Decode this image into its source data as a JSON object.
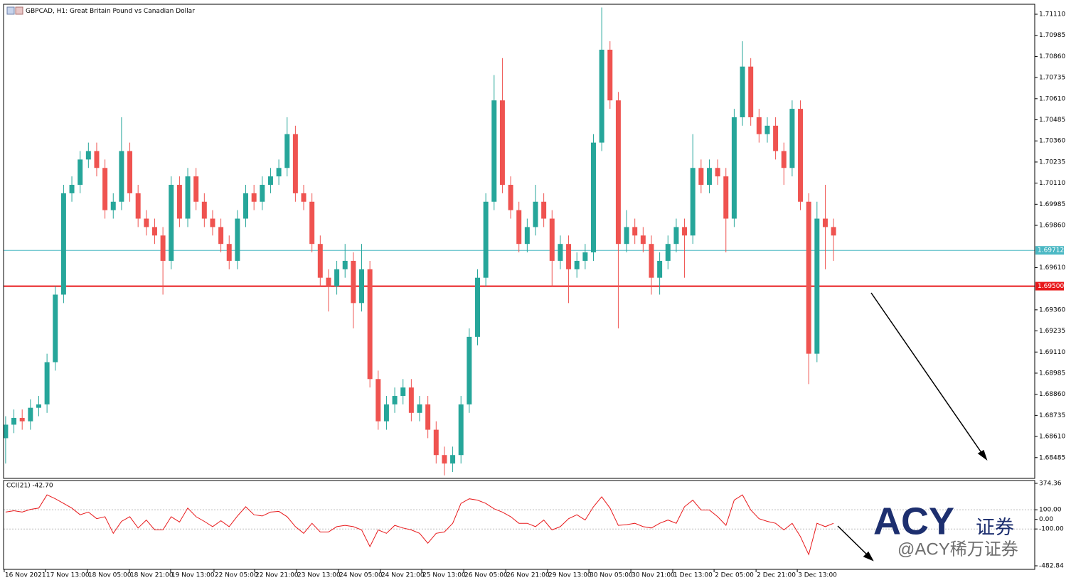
{
  "chart_data": {
    "type": "candlestick",
    "title": "GBPCAD, H1:  Great Britain Pound vs Canadian Dollar",
    "up_color": "#26a69a",
    "down_color": "#ef5350",
    "xlim": [
      -0.25,
      124.3
    ],
    "xticks": [
      {
        "value": -0.17,
        "label": "16 Nov 2021"
      },
      {
        "value": 4.81,
        "label": "17 Nov 13:00"
      },
      {
        "value": 9.88,
        "label": "18 Nov 05:00"
      },
      {
        "value": 14.95,
        "label": "18 Nov 21:00"
      },
      {
        "value": 19.93,
        "label": "19 Nov 13:00"
      },
      {
        "value": 25.17,
        "label": "22 Nov 05:00"
      },
      {
        "value": 30.07,
        "label": "22 Nov 21:00"
      },
      {
        "value": 35.14,
        "label": "23 Nov 13:00"
      },
      {
        "value": 40.21,
        "label": "24 Nov 05:00"
      },
      {
        "value": 45.27,
        "label": "24 Nov 21:00"
      },
      {
        "value": 50.26,
        "label": "25 Nov 13:00"
      },
      {
        "value": 55.33,
        "label": "26 Nov 05:00"
      },
      {
        "value": 60.4,
        "label": "26 Nov 21:00"
      },
      {
        "value": 65.46,
        "label": "29 Nov 13:00"
      },
      {
        "value": 70.45,
        "label": "30 Nov 05:00"
      },
      {
        "value": 75.52,
        "label": "30 Nov 21:00"
      },
      {
        "value": 80.58,
        "label": "1 Dec 13:00"
      },
      {
        "value": 85.57,
        "label": "2 Dec 05:00"
      },
      {
        "value": 90.64,
        "label": "2 Dec 21:00"
      },
      {
        "value": 95.62,
        "label": "3 Dec 13:00"
      }
    ],
    "ylim": [
      1.68362,
      1.71169
    ],
    "yticks": [
      {
        "value": 1.7111,
        "label": "1.71110"
      },
      {
        "value": 1.70985,
        "label": "1.70985"
      },
      {
        "value": 1.7086,
        "label": "1.70860"
      },
      {
        "value": 1.70735,
        "label": "1.70735"
      },
      {
        "value": 1.7061,
        "label": "1.70610"
      },
      {
        "value": 1.70485,
        "label": "1.70485"
      },
      {
        "value": 1.7036,
        "label": "1.70360"
      },
      {
        "value": 1.70235,
        "label": "1.70235"
      },
      {
        "value": 1.7011,
        "label": "1.70110"
      },
      {
        "value": 1.69985,
        "label": "1.69985"
      },
      {
        "value": 1.6986,
        "label": "1.69860"
      },
      {
        "value": 1.6961,
        "label": "1.69610"
      },
      {
        "value": 1.6936,
        "label": "1.69360"
      },
      {
        "value": 1.69235,
        "label": "1.69235"
      },
      {
        "value": 1.6911,
        "label": "1.69110"
      },
      {
        "value": 1.68985,
        "label": "1.68985"
      },
      {
        "value": 1.6886,
        "label": "1.68860"
      },
      {
        "value": 1.68735,
        "label": "1.68735"
      },
      {
        "value": 1.6861,
        "label": "1.68610"
      },
      {
        "value": 1.68485,
        "label": "1.68485"
      }
    ],
    "hlines": [
      {
        "value": 1.69712,
        "label": "1.69712",
        "color": "#4bb8c4"
      },
      {
        "value": 1.695,
        "label": "1.69500",
        "color": "#e8191b"
      }
    ],
    "open": [
      1.686,
      1.6868,
      1.6872,
      1.687,
      1.6878,
      1.688,
      1.6905,
      1.6945,
      1.7005,
      1.701,
      1.7025,
      1.703,
      1.702,
      1.6995,
      1.7,
      1.703,
      1.7005,
      1.699,
      1.6985,
      1.698,
      1.6965,
      1.701,
      1.699,
      1.7015,
      1.7,
      1.699,
      1.6985,
      1.6975,
      1.6965,
      1.699,
      1.7005,
      1.7,
      1.701,
      1.7015,
      1.702,
      1.704,
      1.7005,
      1.7,
      1.6975,
      1.6955,
      1.695,
      1.696,
      1.6965,
      1.694,
      1.696,
      1.6895,
      1.687,
      1.688,
      1.6885,
      1.689,
      1.6875,
      1.688,
      1.6865,
      1.685,
      1.6845,
      1.685,
      1.688,
      1.692,
      1.6955,
      1.7,
      1.706,
      1.701,
      1.6995,
      1.6975,
      1.6985,
      1.7,
      1.699,
      1.6965,
      1.6975,
      1.696,
      1.6965,
      1.697,
      1.7035,
      1.709,
      1.706,
      1.6975,
      1.6985,
      1.698,
      1.6975,
      1.6955,
      1.6965,
      1.6975,
      1.6985,
      1.698,
      1.702,
      1.701,
      1.702,
      1.7015,
      1.699,
      1.705,
      1.708,
      1.705,
      1.704,
      1.7045,
      1.703,
      1.702,
      1.7055,
      1.7,
      1.691,
      1.699,
      1.6985
    ],
    "high": [
      1.6873,
      1.6877,
      1.6877,
      1.6883,
      1.6885,
      1.691,
      1.695,
      1.701,
      1.7015,
      1.703,
      1.7035,
      1.7035,
      1.7025,
      1.7005,
      1.705,
      1.7035,
      1.701,
      1.6995,
      1.699,
      1.6985,
      1.7015,
      1.7015,
      1.702,
      1.702,
      1.7005,
      1.6995,
      1.699,
      1.698,
      1.6995,
      1.701,
      1.701,
      1.7015,
      1.702,
      1.7025,
      1.705,
      1.7045,
      1.701,
      1.7005,
      1.698,
      1.696,
      1.6965,
      1.6975,
      1.697,
      1.6975,
      1.6965,
      1.69,
      1.6885,
      1.689,
      1.6895,
      1.6895,
      1.6885,
      1.6885,
      1.687,
      1.6855,
      1.6855,
      1.6885,
      1.6925,
      1.696,
      1.7005,
      1.7075,
      1.7085,
      1.7015,
      1.7,
      1.699,
      1.701,
      1.7005,
      1.6995,
      1.698,
      1.698,
      1.697,
      1.6975,
      1.704,
      1.7115,
      1.7095,
      1.7065,
      1.6995,
      1.699,
      1.6985,
      1.698,
      1.697,
      1.698,
      1.699,
      1.699,
      1.704,
      1.7025,
      1.7025,
      1.7025,
      1.702,
      1.7055,
      1.7095,
      1.7085,
      1.7055,
      1.705,
      1.705,
      1.7035,
      1.706,
      1.706,
      1.7005,
      1.7,
      1.701,
      1.699
    ],
    "low": [
      1.6845,
      1.6863,
      1.6865,
      1.6865,
      1.6873,
      1.6875,
      1.69,
      1.694,
      1.7,
      1.7005,
      1.702,
      1.7015,
      1.699,
      1.699,
      1.6995,
      1.7,
      1.6985,
      1.698,
      1.6975,
      1.6945,
      1.696,
      1.6985,
      1.6985,
      1.6995,
      1.6985,
      1.698,
      1.697,
      1.696,
      1.696,
      1.6985,
      1.6995,
      1.6995,
      1.7005,
      1.701,
      1.7015,
      1.7,
      1.6995,
      1.697,
      1.695,
      1.6935,
      1.6945,
      1.6955,
      1.6925,
      1.6935,
      1.689,
      1.6865,
      1.6865,
      1.6875,
      1.688,
      1.687,
      1.687,
      1.686,
      1.6845,
      1.6838,
      1.684,
      1.6845,
      1.6875,
      1.6915,
      1.695,
      1.6995,
      1.7005,
      1.699,
      1.697,
      1.697,
      1.698,
      1.6985,
      1.695,
      1.696,
      1.694,
      1.6955,
      1.696,
      1.6965,
      1.703,
      1.7055,
      1.6925,
      1.697,
      1.6975,
      1.697,
      1.6945,
      1.6945,
      1.696,
      1.697,
      1.6955,
      1.6975,
      1.7005,
      1.7005,
      1.701,
      1.697,
      1.6985,
      1.7045,
      1.7045,
      1.7035,
      1.7035,
      1.7025,
      1.701,
      1.7015,
      1.6995,
      1.6892,
      1.6905,
      1.696,
      1.6965
    ],
    "close": [
      1.6868,
      1.6872,
      1.687,
      1.6878,
      1.688,
      1.6905,
      1.6945,
      1.7005,
      1.701,
      1.7025,
      1.703,
      1.702,
      1.6995,
      1.7,
      1.703,
      1.7005,
      1.699,
      1.6985,
      1.698,
      1.6965,
      1.701,
      1.699,
      1.7015,
      1.7,
      1.699,
      1.6985,
      1.6975,
      1.6965,
      1.699,
      1.7005,
      1.7,
      1.701,
      1.7015,
      1.702,
      1.704,
      1.7005,
      1.7,
      1.6975,
      1.6955,
      1.695,
      1.696,
      1.6965,
      1.694,
      1.696,
      1.6895,
      1.687,
      1.688,
      1.6885,
      1.689,
      1.6875,
      1.688,
      1.6865,
      1.685,
      1.6845,
      1.685,
      1.688,
      1.692,
      1.6955,
      1.7,
      1.706,
      1.701,
      1.6995,
      1.6975,
      1.6985,
      1.7,
      1.699,
      1.6965,
      1.6975,
      1.696,
      1.6965,
      1.697,
      1.7035,
      1.709,
      1.706,
      1.6975,
      1.6985,
      1.698,
      1.6975,
      1.6955,
      1.6965,
      1.6975,
      1.6985,
      1.698,
      1.702,
      1.701,
      1.702,
      1.7015,
      1.699,
      1.705,
      1.708,
      1.705,
      1.704,
      1.7045,
      1.703,
      1.702,
      1.7055,
      1.7,
      1.691,
      1.699,
      1.6985,
      1.698
    ],
    "indicator": {
      "type": "line",
      "label": "CCI(21) -42.70",
      "color": "#e8191b",
      "ylim": [
        -482.84,
        374.36
      ],
      "yticks": [
        {
          "value": 374.36,
          "label": "374.36"
        },
        {
          "value": 100,
          "label": "100.00"
        },
        {
          "value": 0,
          "label": "0.00"
        },
        {
          "value": -100,
          "label": "-100.00"
        },
        {
          "value": -482.84,
          "label": "-482.84"
        }
      ],
      "levels": [
        100,
        -100
      ],
      "values": [
        76,
        90,
        76,
        104,
        117,
        255,
        214,
        166,
        117,
        48,
        76,
        7,
        28,
        -145,
        -21,
        28,
        -90,
        -7,
        -110,
        -110,
        28,
        -28,
        117,
        28,
        -21,
        -76,
        -14,
        -76,
        35,
        131,
        48,
        35,
        76,
        83,
        28,
        -76,
        -145,
        -41,
        -131,
        -131,
        -76,
        -62,
        -76,
        -110,
        -283,
        -110,
        -145,
        -62,
        -90,
        -110,
        -145,
        -248,
        -145,
        -131,
        -41,
        166,
        214,
        200,
        166,
        110,
        76,
        28,
        -41,
        -41,
        -76,
        -7,
        -110,
        -76,
        7,
        48,
        -7,
        131,
        235,
        117,
        -62,
        -55,
        -41,
        -76,
        -90,
        -41,
        -7,
        -41,
        131,
        200,
        97,
        97,
        28,
        -62,
        200,
        255,
        97,
        7,
        -21,
        -41,
        -110,
        -41,
        -179,
        -366,
        -41,
        -76,
        -41
      ]
    }
  },
  "watermark": {
    "logo": "ACY",
    "tag": "证券",
    "handle": "@ACY稀万证券"
  }
}
